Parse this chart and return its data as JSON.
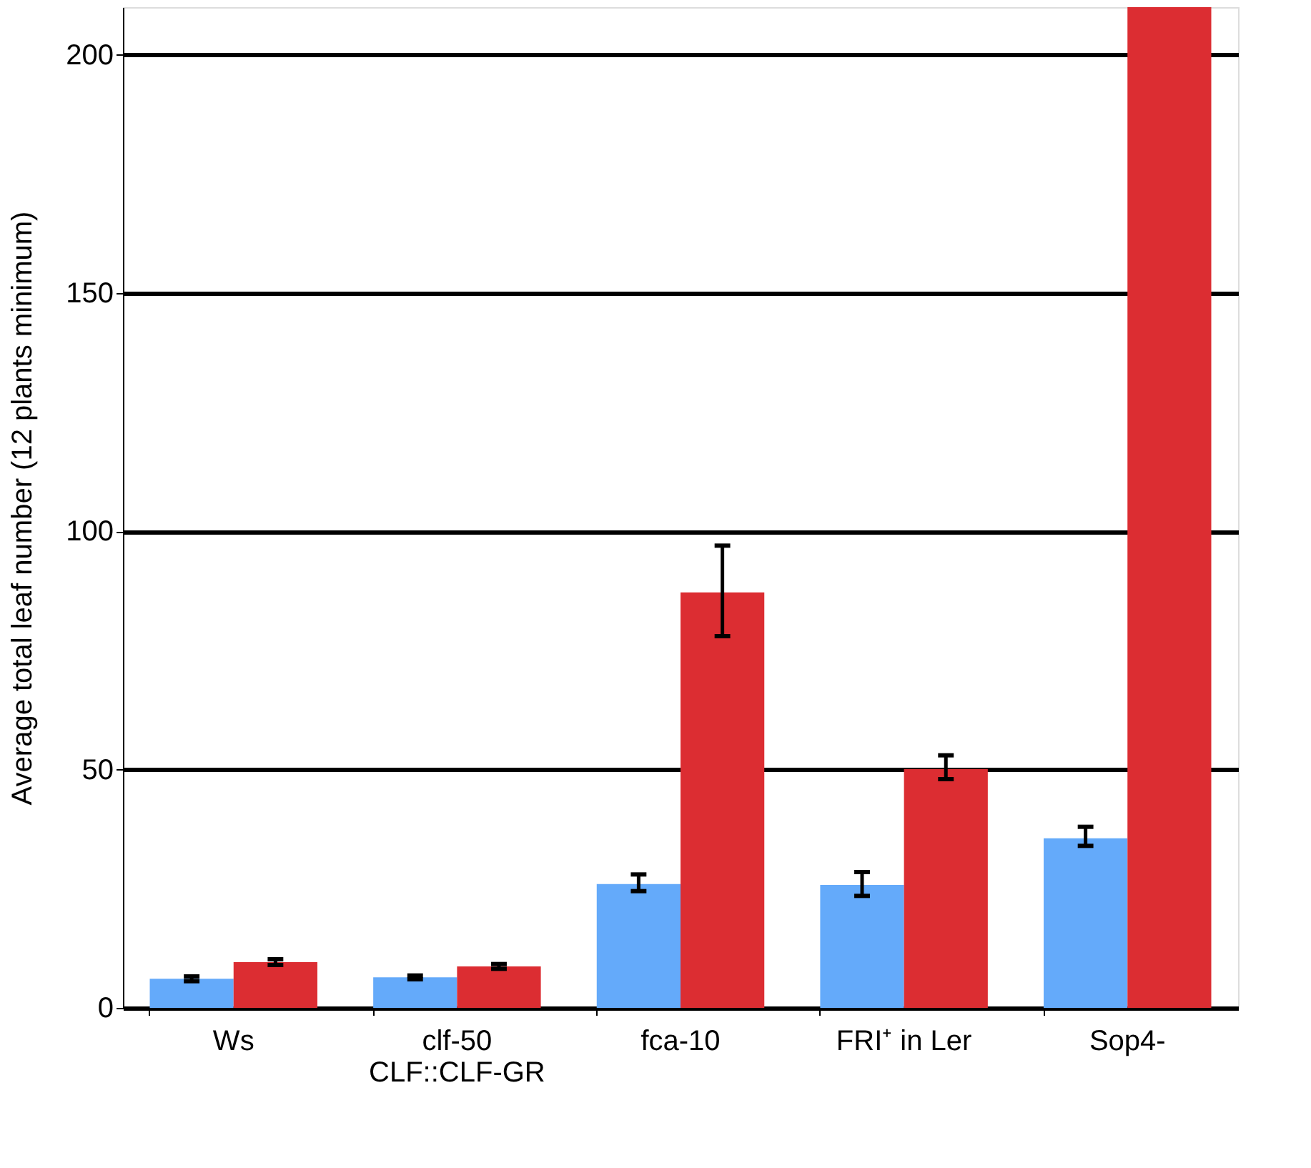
{
  "chart_data": {
    "type": "bar",
    "ylabel": "Average total leaf number (12 plants minimum)",
    "categories": [
      "Ws",
      "clf-50\nCLF::CLF-GR",
      "fca-10",
      "FRI⁺ in Ler",
      "Sop4-"
    ],
    "series": [
      {
        "color": "#64aafa",
        "values": [
          6.1,
          6.4,
          26,
          25.8,
          35.6
        ],
        "errors": [
          [
            5.6,
            6.6
          ],
          [
            6,
            6.8
          ],
          [
            24.5,
            28
          ],
          [
            23.5,
            28.5
          ],
          [
            34,
            38
          ]
        ]
      },
      {
        "color": "#dc2d32",
        "values": [
          9.6,
          8.7,
          87.2,
          50.1,
          210
        ],
        "errors": [
          [
            9,
            10.2
          ],
          [
            8.2,
            9.2
          ],
          [
            78,
            97
          ],
          [
            48,
            53
          ],
          null
        ]
      }
    ],
    "ylim": [
      0,
      210
    ],
    "yticks": [
      0,
      50,
      100,
      150,
      200
    ],
    "grid": "y",
    "legend": false
  }
}
